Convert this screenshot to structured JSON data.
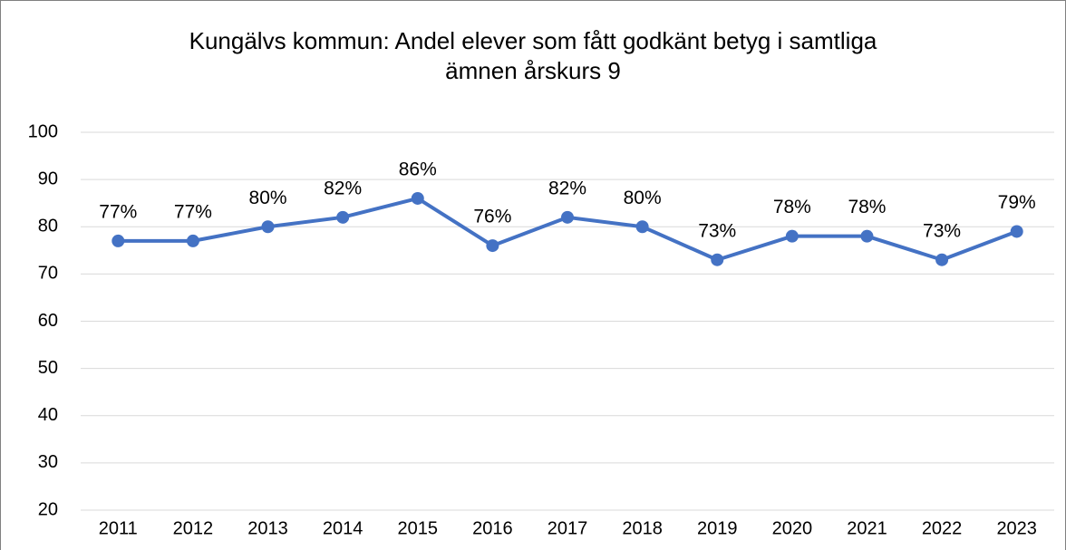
{
  "chart_data": {
    "type": "line",
    "title": [
      "Kungälvs kommun: Andel elever som fått godkänt betyg i samtliga",
      "ämnen årskurs 9"
    ],
    "categories": [
      "2011",
      "2012",
      "2013",
      "2014",
      "2015",
      "2016",
      "2017",
      "2018",
      "2019",
      "2020",
      "2021",
      "2022",
      "2023"
    ],
    "values": [
      77,
      77,
      80,
      82,
      86,
      76,
      82,
      80,
      73,
      78,
      78,
      73,
      79
    ],
    "value_labels": [
      "77%",
      "77%",
      "80%",
      "82%",
      "86%",
      "76%",
      "82%",
      "80%",
      "73%",
      "78%",
      "78%",
      "73%",
      "79%"
    ],
    "color": "#4472c4",
    "ylim": [
      20,
      100
    ],
    "yticks": [
      20,
      30,
      40,
      50,
      60,
      70,
      80,
      90,
      100
    ],
    "grid": true
  }
}
